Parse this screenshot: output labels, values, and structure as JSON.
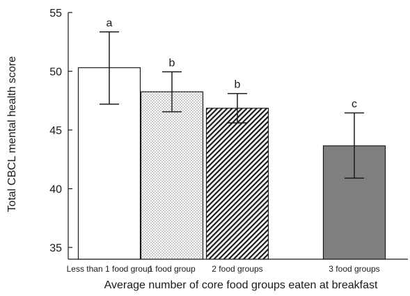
{
  "chart_data": {
    "type": "bar",
    "title": "",
    "xlabel": "Average number of core food groups eaten at breakfast",
    "ylabel": "Total CBCL mental health score",
    "ylim": [
      34,
      55
    ],
    "yticks": [
      35,
      40,
      45,
      50,
      55
    ],
    "grid": false,
    "categories": [
      "Less than 1 food group",
      "1 food group",
      "2 food groups",
      "3 food groups"
    ],
    "values": [
      50.3,
      48.25,
      46.85,
      43.65
    ],
    "error_low": [
      47.2,
      46.55,
      45.6,
      40.9
    ],
    "error_high": [
      53.35,
      49.95,
      48.1,
      46.45
    ],
    "significance": [
      "a",
      "b",
      "b",
      "c"
    ],
    "fills": [
      "white",
      "dots",
      "diagonal-hatch",
      "gray"
    ],
    "colors": {
      "axis": "#1a1a1a",
      "solid_fill": "#808080",
      "pattern_ink": "#1a1a1a"
    }
  }
}
